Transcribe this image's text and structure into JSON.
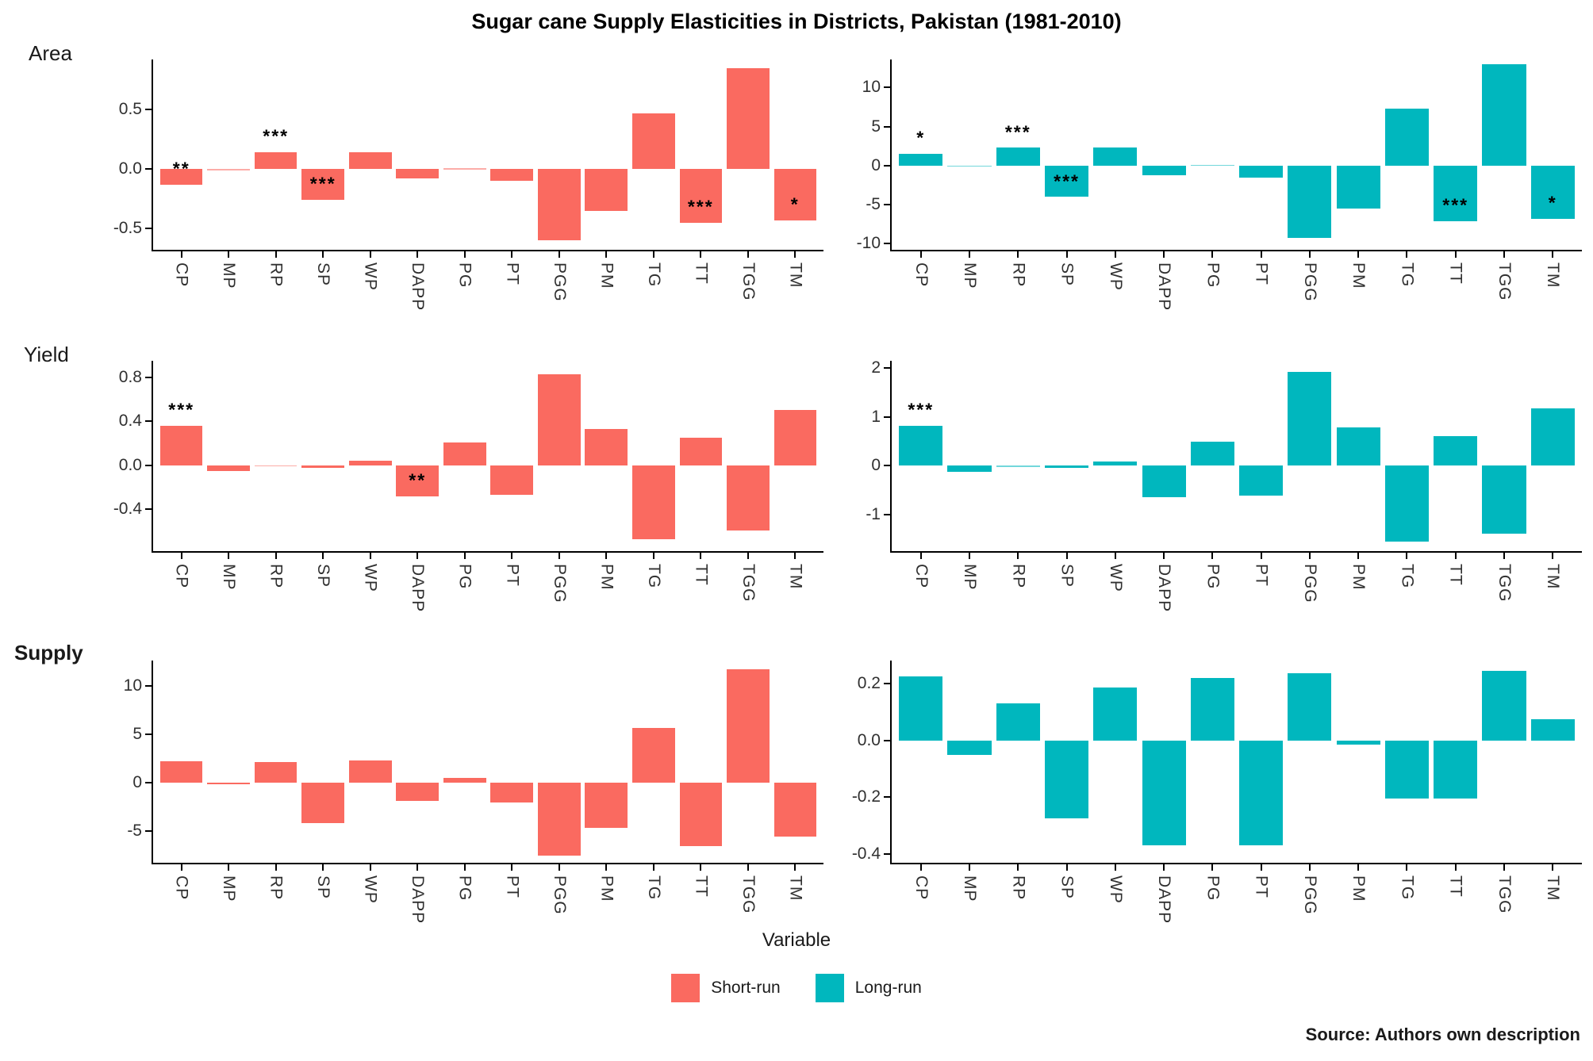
{
  "title": "Sugar cane Supply Elasticities in Districts, Pakistan (1981-2010)",
  "x_axis_label": "Variable",
  "source": "Source: Authors own description",
  "rows": [
    {
      "label": "Area"
    },
    {
      "label": "Yield"
    },
    {
      "label": "Supply"
    }
  ],
  "colors": {
    "short_run": "#FA6A60",
    "long_run": "#00B7BE"
  },
  "legend": [
    {
      "label": "Short-run",
      "color_key": "short_run"
    },
    {
      "label": "Long-run",
      "color_key": "long_run"
    }
  ],
  "chart_data": {
    "type": "bar",
    "categories": [
      "CP",
      "MP",
      "RP",
      "SP",
      "WP",
      "DAPP",
      "PG",
      "PT",
      "PGG",
      "PM",
      "TG",
      "TT",
      "TGG",
      "TM"
    ],
    "grid": false,
    "legend_position": "bottom",
    "panels": [
      {
        "row": "Area",
        "series": "Short-run",
        "color_key": "short_run",
        "ylim": [
          -0.68,
          0.92
        ],
        "yticks": [
          0.5,
          0.0,
          -0.5
        ],
        "ytick_labels": [
          "0.5",
          "0.0",
          "-0.5"
        ],
        "values": [
          -0.13,
          -0.005,
          0.14,
          -0.26,
          0.14,
          -0.08,
          0.005,
          -0.1,
          -0.6,
          -0.35,
          0.47,
          -0.45,
          0.85,
          -0.43
        ],
        "stars": [
          "**",
          null,
          "***",
          "***",
          null,
          null,
          null,
          null,
          null,
          null,
          null,
          "***",
          null,
          "*"
        ]
      },
      {
        "row": "Area",
        "series": "Long-run",
        "color_key": "long_run",
        "ylim": [
          -10.8,
          13.6
        ],
        "yticks": [
          10,
          5,
          0,
          -5,
          -10
        ],
        "ytick_labels": [
          "10",
          "5",
          "0",
          "-5",
          "-10"
        ],
        "values": [
          1.5,
          -0.02,
          2.3,
          -4.0,
          2.3,
          -1.2,
          0.08,
          -1.5,
          -9.3,
          -5.5,
          7.3,
          -7.1,
          13.0,
          -6.8
        ],
        "stars": [
          "*",
          null,
          "***",
          "***",
          null,
          null,
          null,
          null,
          null,
          null,
          null,
          "***",
          null,
          "*"
        ]
      },
      {
        "row": "Yield",
        "series": "Short-run",
        "color_key": "short_run",
        "ylim": [
          -0.78,
          0.95
        ],
        "yticks": [
          0.8,
          0.4,
          0.0,
          -0.4
        ],
        "ytick_labels": [
          "0.8",
          "0.4",
          "0.0",
          "-0.4"
        ],
        "values": [
          0.36,
          -0.05,
          -0.01,
          -0.02,
          0.04,
          -0.28,
          0.21,
          -0.27,
          0.83,
          0.33,
          -0.67,
          0.25,
          -0.59,
          0.5
        ],
        "stars": [
          "***",
          null,
          null,
          null,
          null,
          "**",
          null,
          null,
          null,
          null,
          null,
          null,
          null,
          null
        ]
      },
      {
        "row": "Yield",
        "series": "Long-run",
        "color_key": "long_run",
        "ylim": [
          -1.75,
          2.15
        ],
        "yticks": [
          2,
          1,
          0,
          -1
        ],
        "ytick_labels": [
          "2",
          "1",
          "0",
          "-1"
        ],
        "values": [
          0.82,
          -0.12,
          -0.02,
          -0.04,
          0.08,
          -0.65,
          0.5,
          -0.62,
          1.93,
          0.78,
          -1.55,
          0.6,
          -1.4,
          1.17
        ],
        "stars": [
          "***",
          null,
          null,
          null,
          null,
          null,
          null,
          null,
          null,
          null,
          null,
          null,
          null,
          null
        ]
      },
      {
        "row": "Supply",
        "series": "Short-run",
        "color_key": "short_run",
        "ylim": [
          -8.3,
          12.6
        ],
        "yticks": [
          10,
          5,
          0,
          -5
        ],
        "ytick_labels": [
          "10",
          "5",
          "0",
          "-5"
        ],
        "values": [
          2.2,
          -0.15,
          2.1,
          -4.2,
          2.3,
          -1.9,
          0.5,
          -2.1,
          -7.6,
          -4.7,
          5.6,
          -6.6,
          11.7,
          -5.6
        ],
        "stars": [
          null,
          null,
          null,
          null,
          null,
          null,
          null,
          null,
          null,
          null,
          null,
          null,
          null,
          null
        ]
      },
      {
        "row": "Supply",
        "series": "Long-run",
        "color_key": "long_run",
        "ylim": [
          -0.43,
          0.28
        ],
        "yticks": [
          0.2,
          0.0,
          -0.2,
          -0.4
        ],
        "ytick_labels": [
          "0.2",
          "0.0",
          "-0.2",
          "-0.4"
        ],
        "values": [
          0.225,
          -0.05,
          0.13,
          -0.275,
          0.185,
          -0.37,
          0.22,
          -0.37,
          0.235,
          -0.015,
          -0.205,
          -0.205,
          0.245,
          0.075
        ],
        "stars": [
          null,
          null,
          null,
          null,
          null,
          null,
          null,
          null,
          null,
          null,
          null,
          null,
          null,
          null
        ]
      }
    ]
  }
}
